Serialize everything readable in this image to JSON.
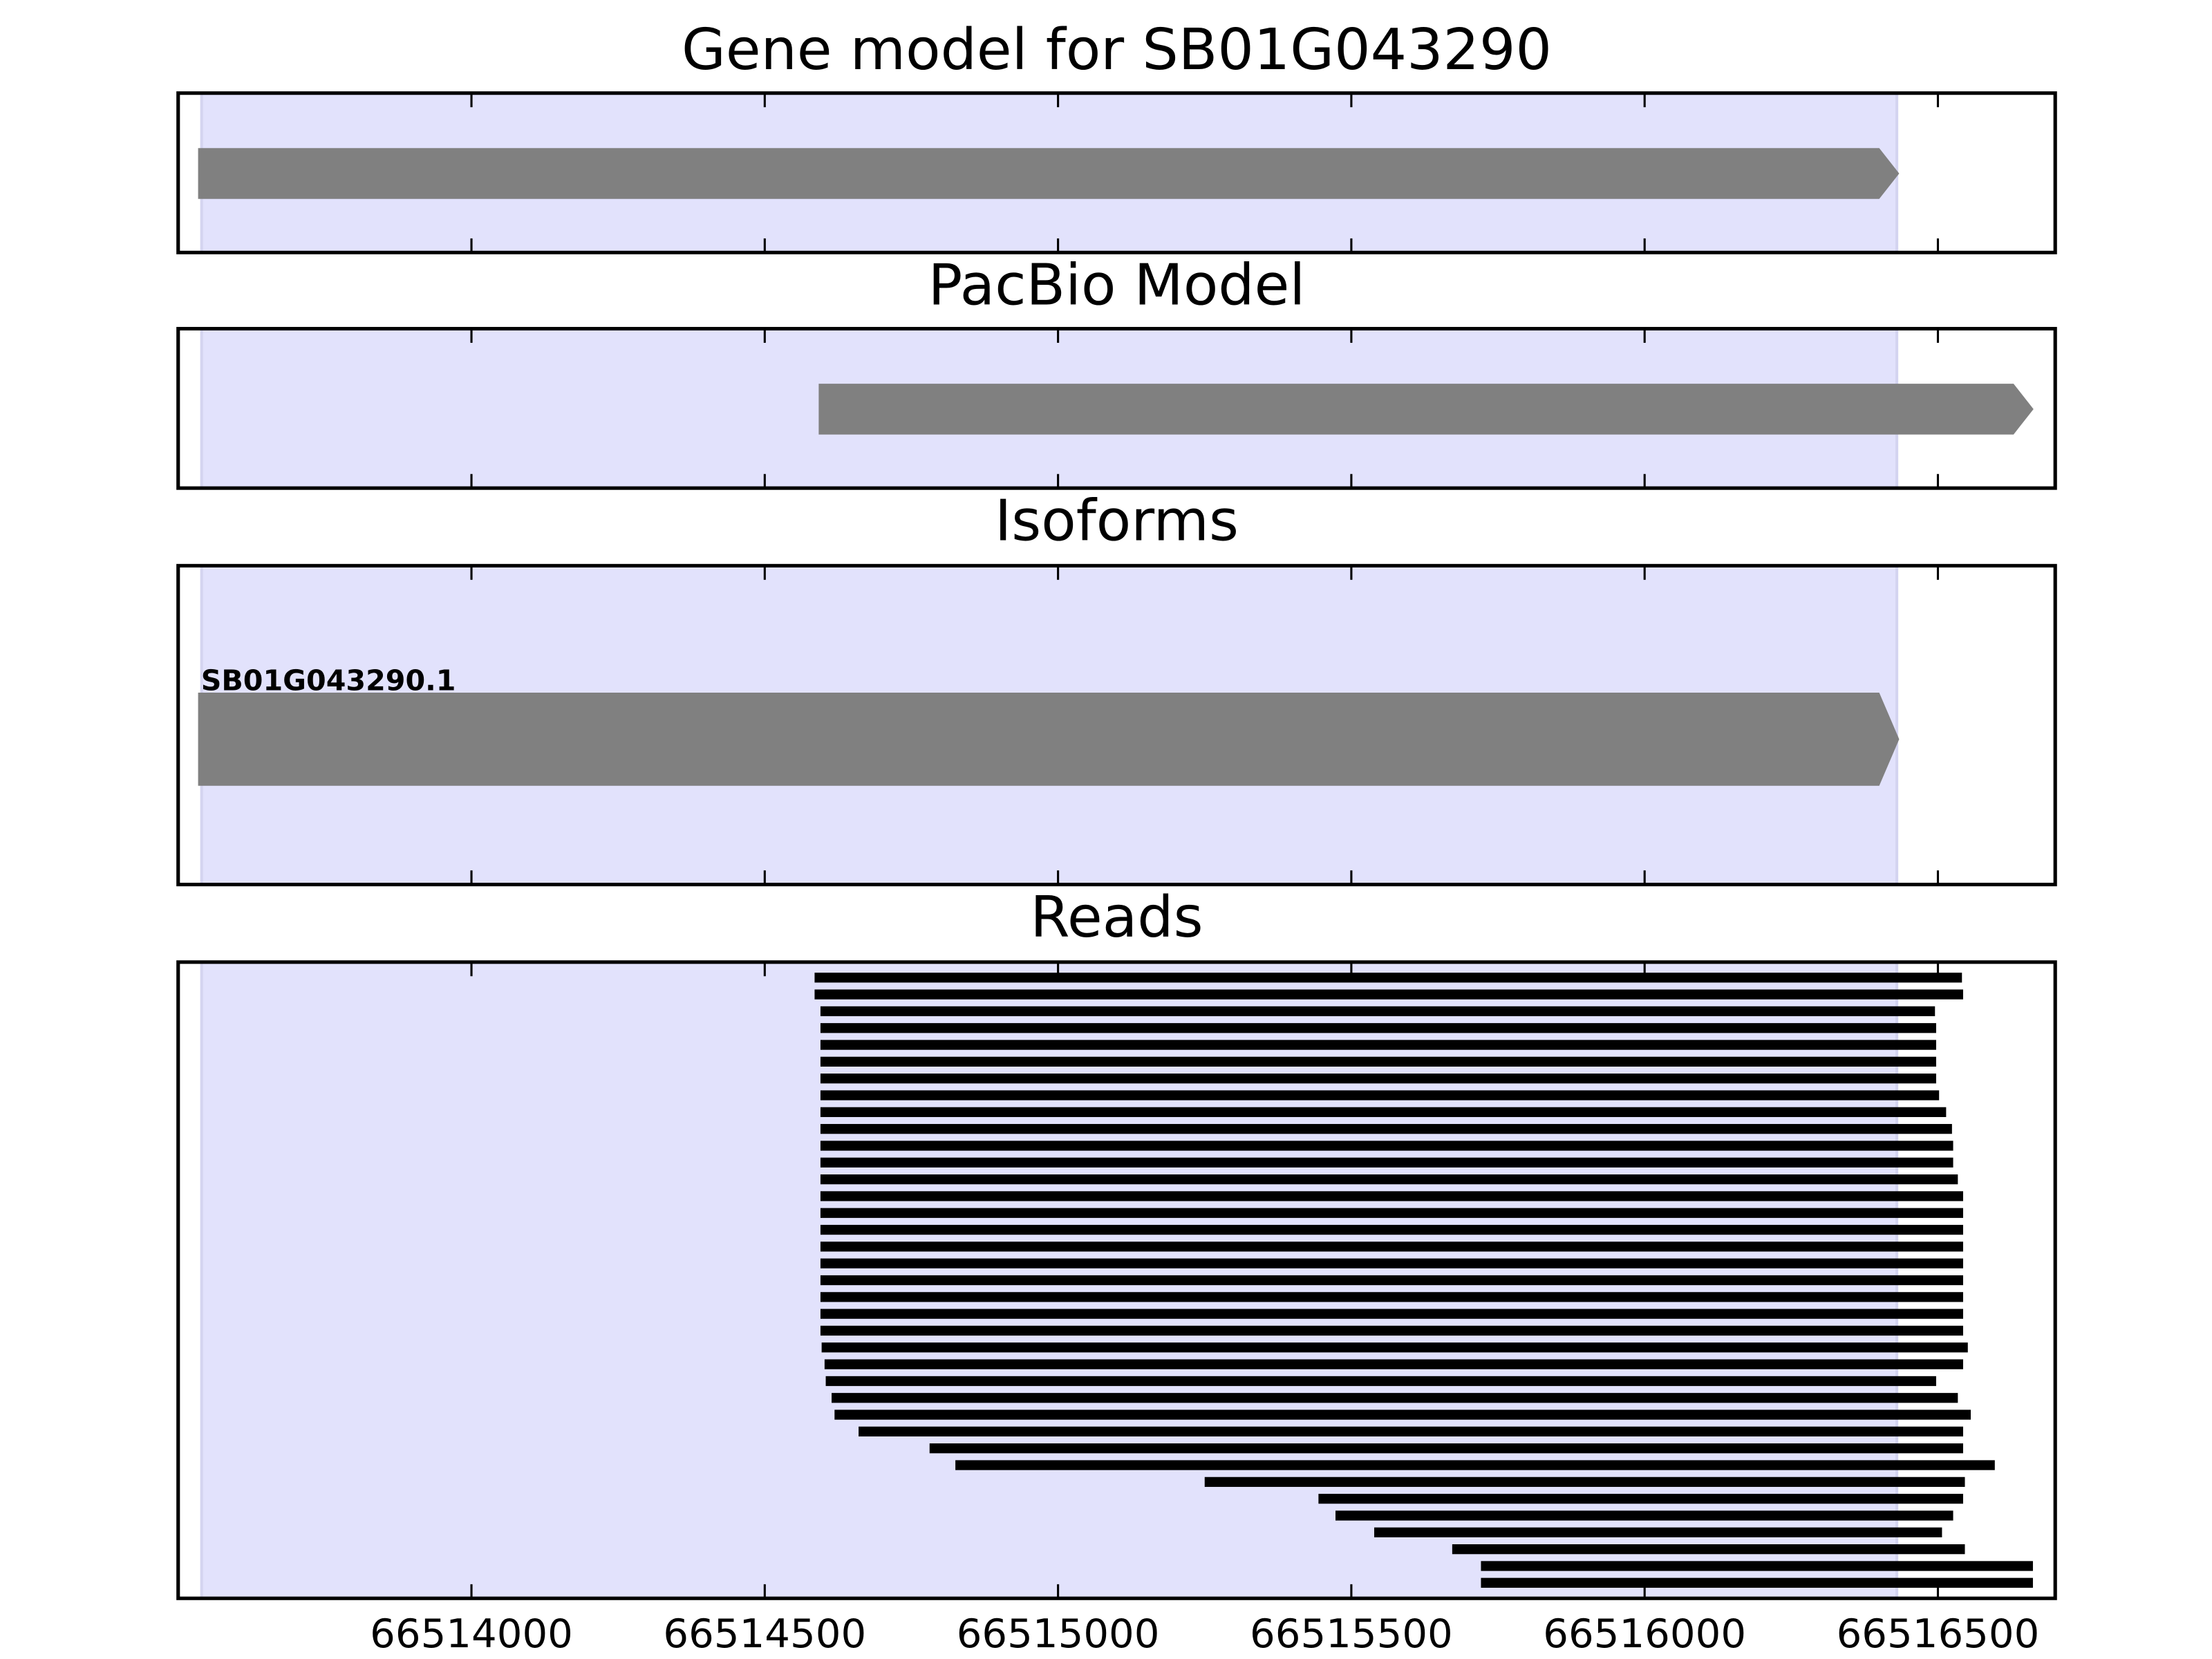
{
  "chart_data": [
    {
      "type": "gene",
      "title": "Gene model for SB01G043290",
      "xlim": [
        66513500,
        66516700
      ],
      "xticks": [
        66514000,
        66514500,
        66515000,
        66515500,
        66516000,
        66516500
      ],
      "highlight": [
        66513540,
        66516430
      ],
      "color": "#808080",
      "intervals": [
        [
          66513534,
          66516434
        ]
      ]
    },
    {
      "type": "gene",
      "title": "PacBio Model",
      "xlim": [
        66513500,
        66516700
      ],
      "xticks": [
        66514000,
        66514500,
        66515000,
        66515500,
        66516000,
        66516500
      ],
      "highlight": [
        66513540,
        66516430
      ],
      "color": "#808080",
      "intervals": [
        [
          66514592,
          66516663
        ]
      ]
    },
    {
      "type": "gene",
      "title": "Isoforms",
      "xlim": [
        66513500,
        66516700
      ],
      "xticks": [
        66514000,
        66514500,
        66515000,
        66515500,
        66516000,
        66516500
      ],
      "highlight": [
        66513540,
        66516430
      ],
      "color": "#808080",
      "intervals": [
        [
          66513534,
          66516434
        ]
      ],
      "labels": [
        "SB01G043290.1"
      ]
    },
    {
      "type": "reads",
      "title": "Reads",
      "xlim": [
        66513500,
        66516700
      ],
      "xticks": [
        66514000,
        66514500,
        66515000,
        66515500,
        66516000,
        66516500
      ],
      "highlight": [
        66513540,
        66516430
      ],
      "color": "#000000",
      "intervals": [
        [
          66514585,
          66516541
        ],
        [
          66514585,
          66516543
        ],
        [
          66514595,
          66516495
        ],
        [
          66514595,
          66516497
        ],
        [
          66514595,
          66516497
        ],
        [
          66514595,
          66516497
        ],
        [
          66514595,
          66516497
        ],
        [
          66514595,
          66516502
        ],
        [
          66514595,
          66516514
        ],
        [
          66514595,
          66516524
        ],
        [
          66514595,
          66516526
        ],
        [
          66514595,
          66516526
        ],
        [
          66514595,
          66516534
        ],
        [
          66514595,
          66516543
        ],
        [
          66514595,
          66516543
        ],
        [
          66514595,
          66516543
        ],
        [
          66514595,
          66516543
        ],
        [
          66514595,
          66516543
        ],
        [
          66514595,
          66516543
        ],
        [
          66514595,
          66516543
        ],
        [
          66514595,
          66516543
        ],
        [
          66514595,
          66516543
        ],
        [
          66514597,
          66516551
        ],
        [
          66514602,
          66516543
        ],
        [
          66514604,
          66516497
        ],
        [
          66514614,
          66516534
        ],
        [
          66514619,
          66516556
        ],
        [
          66514660,
          66516543
        ],
        [
          66514781,
          66516543
        ],
        [
          66514825,
          66516597
        ],
        [
          66515250,
          66516546
        ],
        [
          66515444,
          66516543
        ],
        [
          66515473,
          66516526
        ],
        [
          66515539,
          66516507
        ],
        [
          66515672,
          66516546
        ],
        [
          66515721,
          66516662
        ],
        [
          66515721,
          66516662
        ]
      ]
    }
  ]
}
